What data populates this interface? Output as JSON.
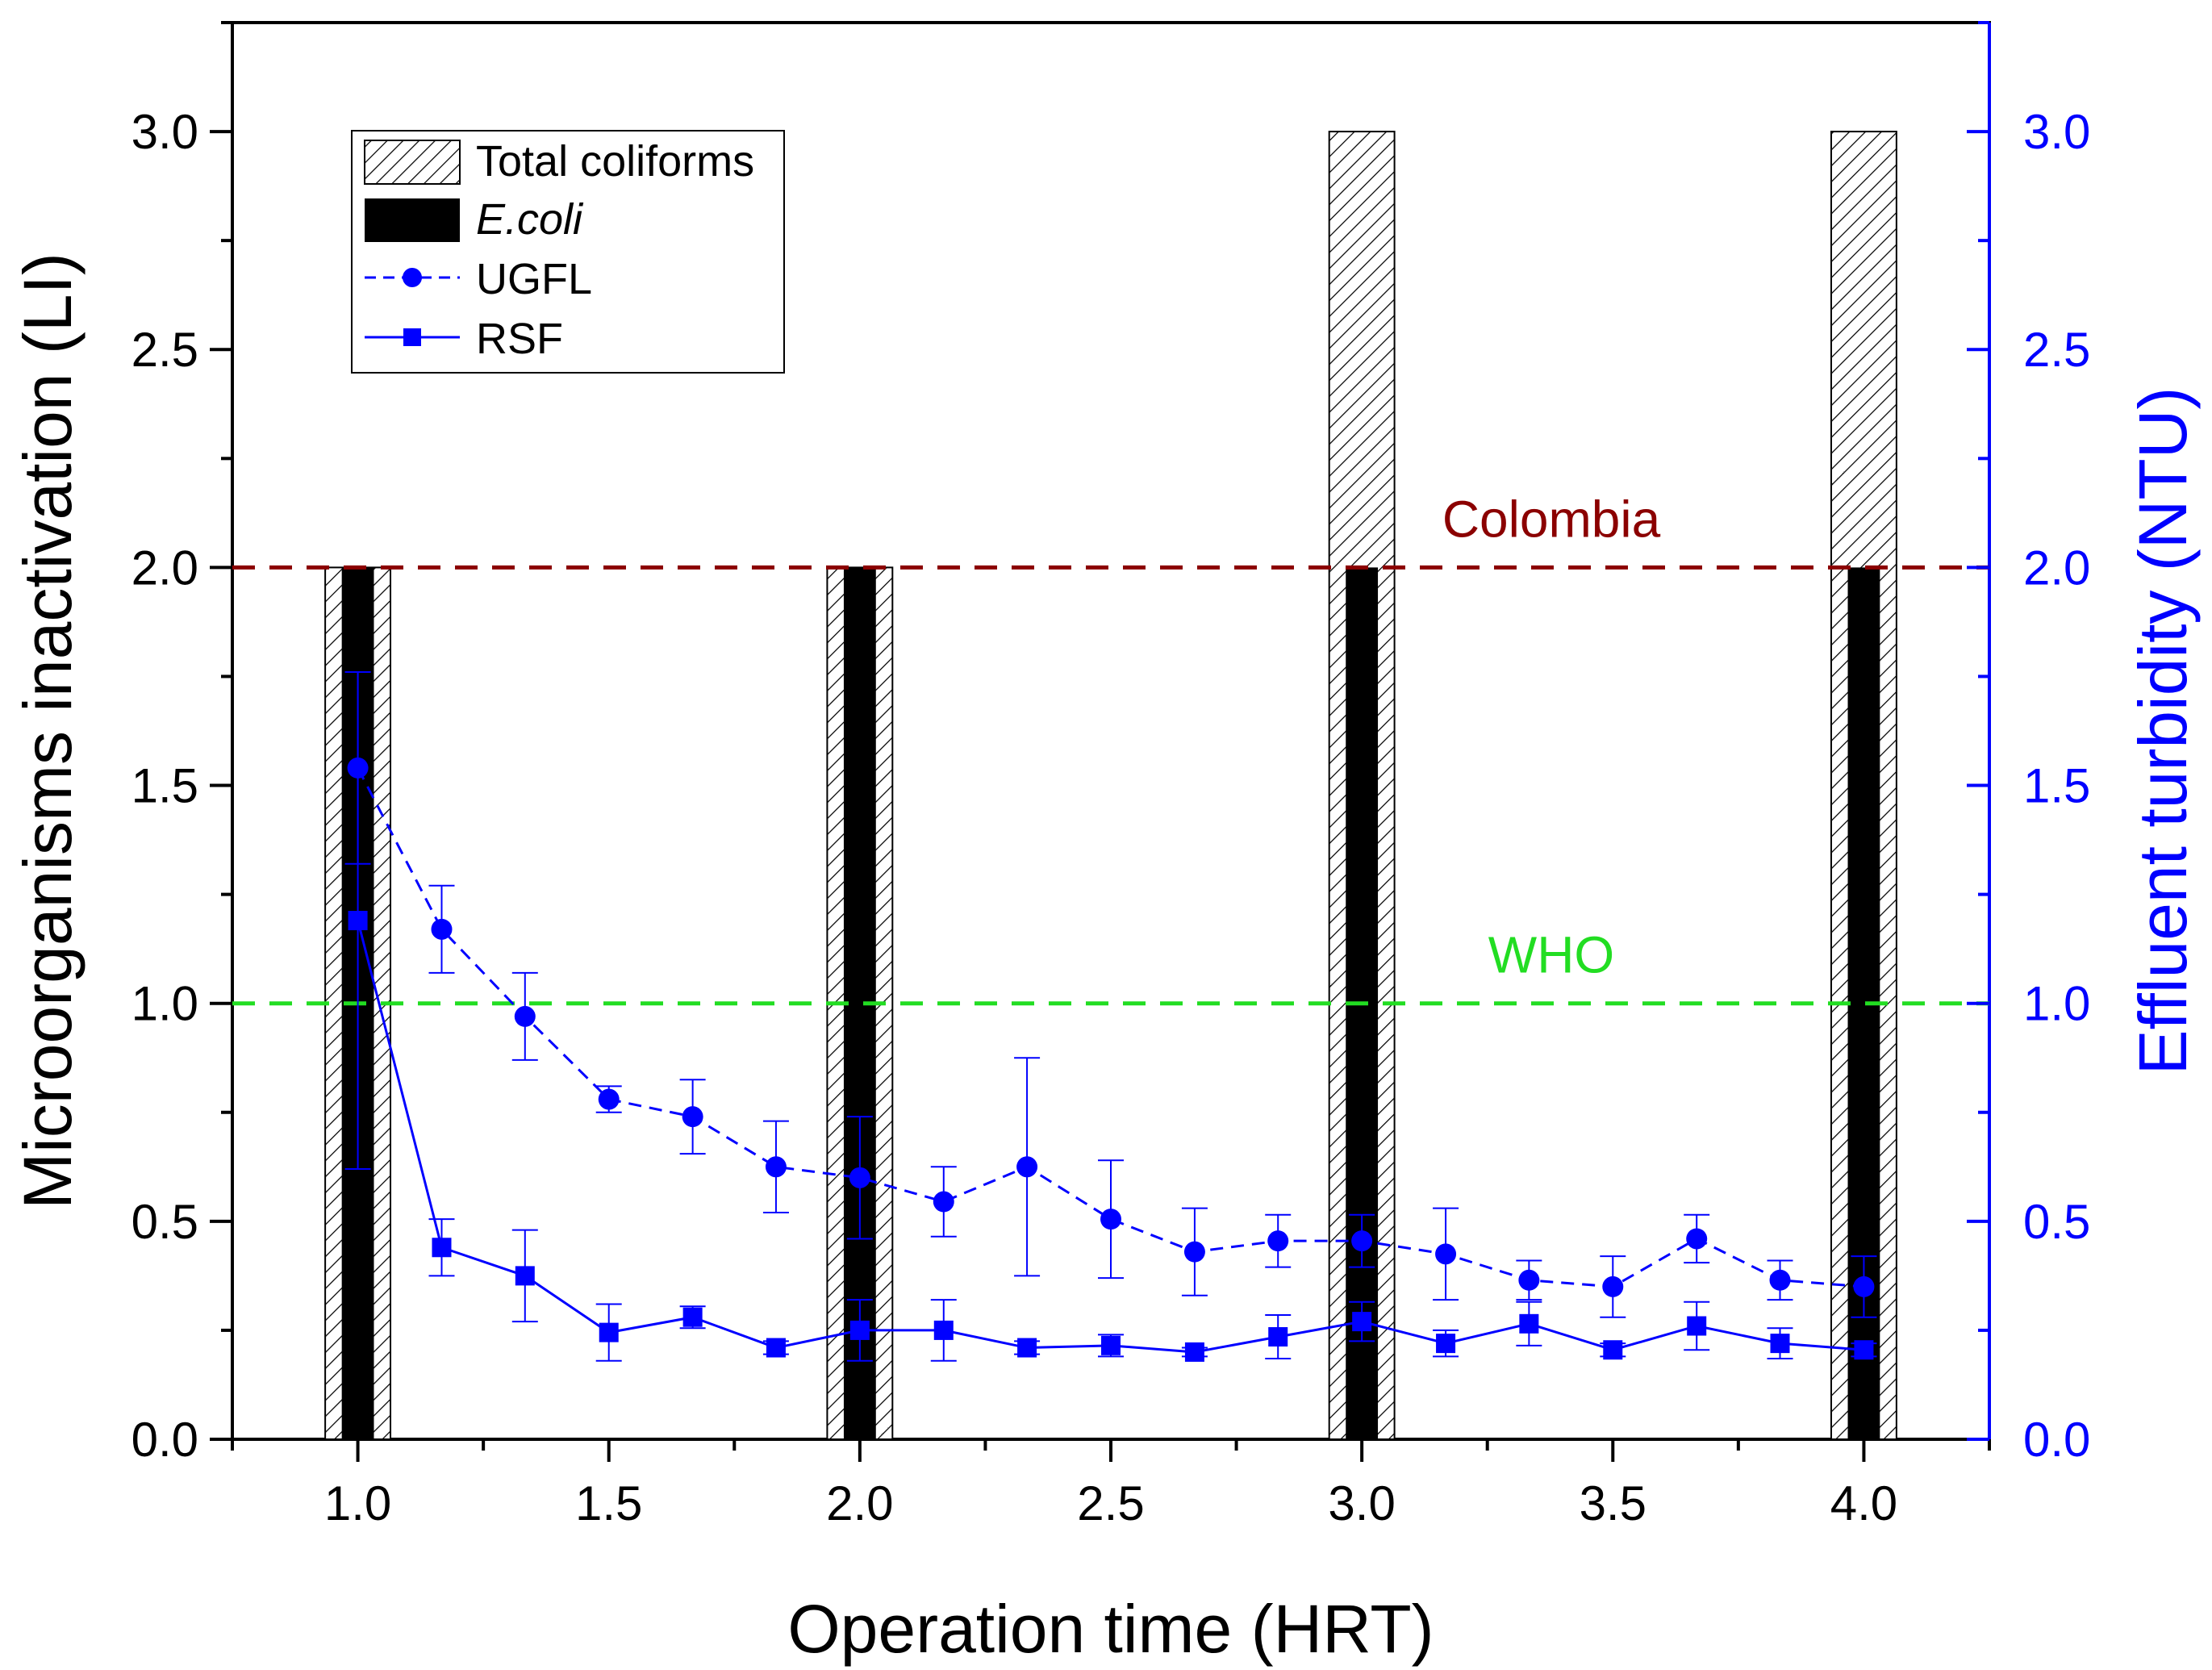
{
  "chart_data": {
    "type": "bar+line",
    "xlabel": "Operation time (HRT)",
    "ylabel_left": "Microorganisms inactivation (LI)",
    "ylabel_right": "Effluent turbidity (NTU)",
    "xlim": [
      0.75,
      4.25
    ],
    "ylim_left": [
      0,
      3.25
    ],
    "ylim_right": [
      0,
      3.25
    ],
    "x_ticks": [
      1.0,
      1.5,
      2.0,
      2.5,
      3.0,
      3.5,
      4.0
    ],
    "x_tick_labels": [
      "1.0",
      "1.5",
      "2.0",
      "2.5",
      "3.0",
      "3.5",
      "4.0"
    ],
    "y_ticks": [
      0.0,
      0.5,
      1.0,
      1.5,
      2.0,
      2.5,
      3.0
    ],
    "y_tick_labels": [
      "0.0",
      "0.5",
      "1.0",
      "1.5",
      "2.0",
      "2.5",
      "3.0"
    ],
    "bar_categories": [
      1.0,
      2.0,
      3.0,
      4.0
    ],
    "bars": [
      {
        "name": "Total coliforms",
        "values": [
          2.0,
          2.0,
          3.0,
          3.0
        ],
        "pattern": "hatched"
      },
      {
        "name": "E.coli",
        "values": [
          2.0,
          2.0,
          2.0,
          2.0
        ],
        "color": "#000000"
      }
    ],
    "series": [
      {
        "name": "UGFL",
        "style": "dashed",
        "marker": "circle",
        "color": "#0000ff",
        "x": [
          1.0,
          1.167,
          1.333,
          1.5,
          1.667,
          1.833,
          2.0,
          2.167,
          2.333,
          2.5,
          2.667,
          2.833,
          3.0,
          3.167,
          3.333,
          3.5,
          3.667,
          3.833,
          4.0
        ],
        "y": [
          1.54,
          1.17,
          0.97,
          0.78,
          0.74,
          0.625,
          0.6,
          0.545,
          0.625,
          0.505,
          0.43,
          0.455,
          0.455,
          0.425,
          0.365,
          0.35,
          0.46,
          0.365,
          0.35
        ],
        "err": [
          0.22,
          0.1,
          0.1,
          0.03,
          0.085,
          0.105,
          0.14,
          0.08,
          0.25,
          0.135,
          0.1,
          0.06,
          0.06,
          0.105,
          0.045,
          0.07,
          0.055,
          0.045,
          0.07
        ]
      },
      {
        "name": "RSF",
        "style": "solid",
        "marker": "square",
        "color": "#0000ff",
        "x": [
          1.0,
          1.167,
          1.333,
          1.5,
          1.667,
          1.833,
          2.0,
          2.167,
          2.333,
          2.5,
          2.667,
          2.833,
          3.0,
          3.167,
          3.333,
          3.5,
          3.667,
          3.833,
          4.0
        ],
        "y": [
          1.19,
          0.44,
          0.375,
          0.245,
          0.28,
          0.21,
          0.25,
          0.25,
          0.21,
          0.215,
          0.2,
          0.235,
          0.27,
          0.22,
          0.265,
          0.205,
          0.26,
          0.22,
          0.205
        ],
        "err": [
          0.57,
          0.065,
          0.105,
          0.065,
          0.025,
          0.015,
          0.07,
          0.07,
          0.015,
          0.025,
          0.01,
          0.05,
          0.045,
          0.03,
          0.05,
          0.015,
          0.055,
          0.035,
          0.015
        ]
      }
    ],
    "reference_lines": [
      {
        "label": "Colombia",
        "y": 2.0,
        "color": "#8b0000"
      },
      {
        "label": "WHO",
        "y": 1.0,
        "color": "#22dd22"
      }
    ],
    "legend": {
      "placement": "top-left",
      "entries": [
        "Total coliforms",
        "E.coli",
        "UGFL",
        "RSF"
      ]
    },
    "grid": false
  }
}
